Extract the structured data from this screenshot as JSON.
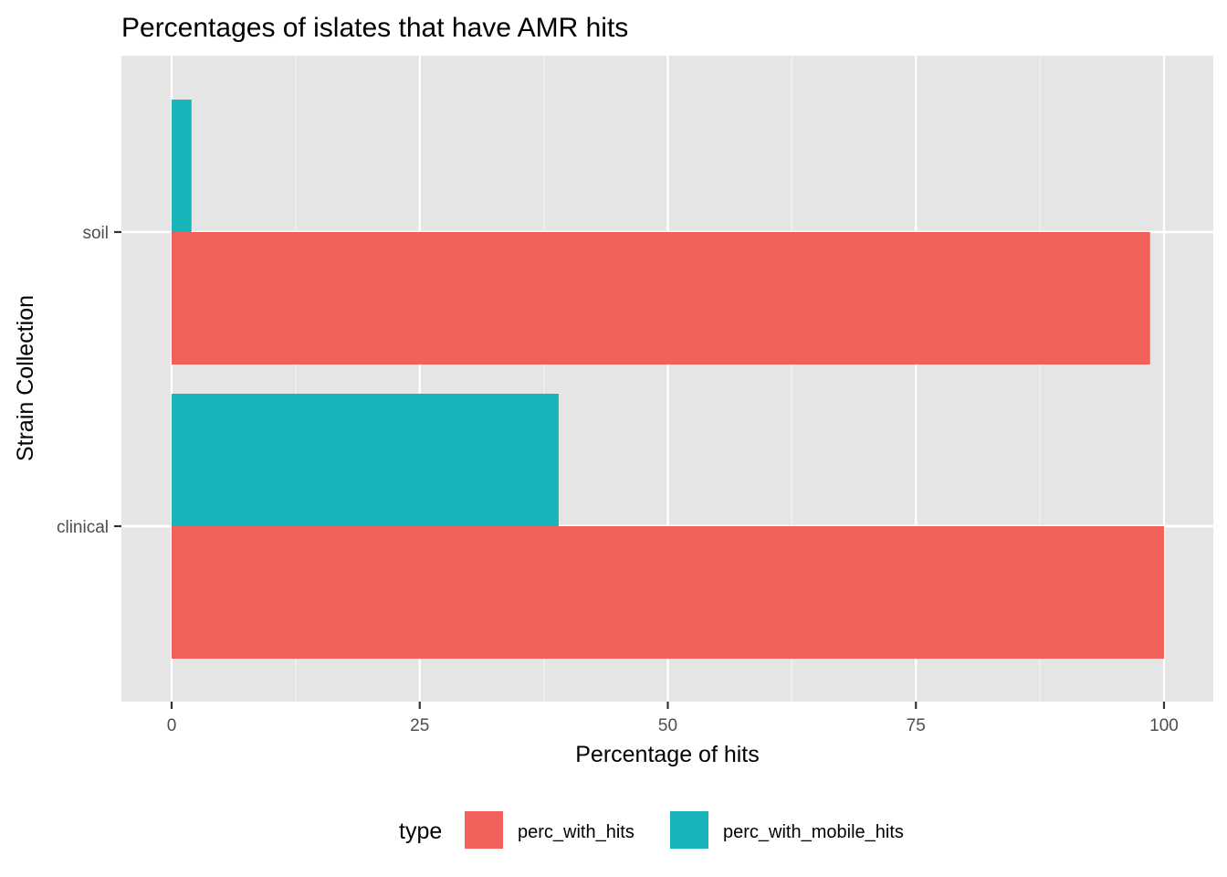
{
  "chart_data": {
    "type": "bar",
    "orientation": "horizontal",
    "bar_position": "dodge",
    "title": "Percentages of islates that have AMR hits",
    "xlabel": "Percentage of hits",
    "ylabel": "Strain Collection",
    "categories": [
      "clinical",
      "soil"
    ],
    "series": [
      {
        "name": "perc_with_hits",
        "color": "#F2605C",
        "values": [
          100,
          98.6
        ]
      },
      {
        "name": "perc_with_mobile_hits",
        "color": "#19B4B9",
        "values": [
          39,
          2
        ]
      }
    ],
    "xlim": [
      -5,
      105
    ],
    "x_ticks": [
      0,
      25,
      50,
      75,
      100
    ],
    "x_tick_labels": [
      "0",
      "25",
      "50",
      "75",
      "100"
    ],
    "grid": true,
    "panel_background": "#E5E5E5",
    "legend": {
      "title": "type",
      "position": "bottom"
    }
  }
}
